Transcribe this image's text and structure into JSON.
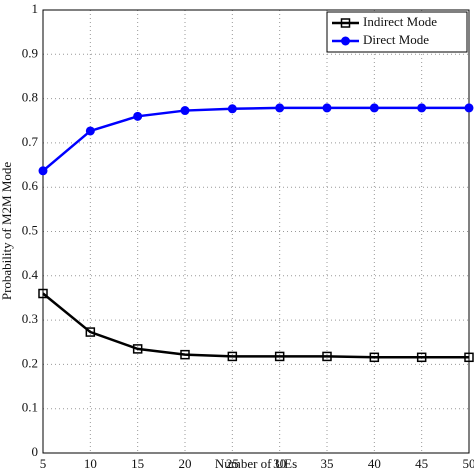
{
  "chart_data": {
    "type": "line",
    "x_label": "Number of UEs",
    "y_label": "Probability of M2M Mode",
    "x": [
      5,
      10,
      15,
      20,
      25,
      30,
      35,
      40,
      45,
      50
    ],
    "series": [
      {
        "name": "Indirect Mode",
        "color": "#000000",
        "marker": "square",
        "values": [
          0.36,
          0.273,
          0.235,
          0.222,
          0.218,
          0.218,
          0.218,
          0.216,
          0.216,
          0.216
        ]
      },
      {
        "name": "Direct Mode",
        "color": "#0000ff",
        "marker": "circle",
        "values": [
          0.637,
          0.727,
          0.76,
          0.773,
          0.777,
          0.779,
          0.779,
          0.779,
          0.779,
          0.779
        ]
      }
    ],
    "xlim": [
      5,
      50
    ],
    "ylim": [
      0,
      1
    ],
    "xticks": [
      5,
      10,
      15,
      20,
      25,
      30,
      35,
      40,
      45,
      50
    ],
    "yticks": [
      0,
      0.1,
      0.2,
      0.3,
      0.4,
      0.5,
      0.6,
      0.7,
      0.8,
      0.9,
      1
    ],
    "grid": true,
    "legend": "top-right"
  }
}
